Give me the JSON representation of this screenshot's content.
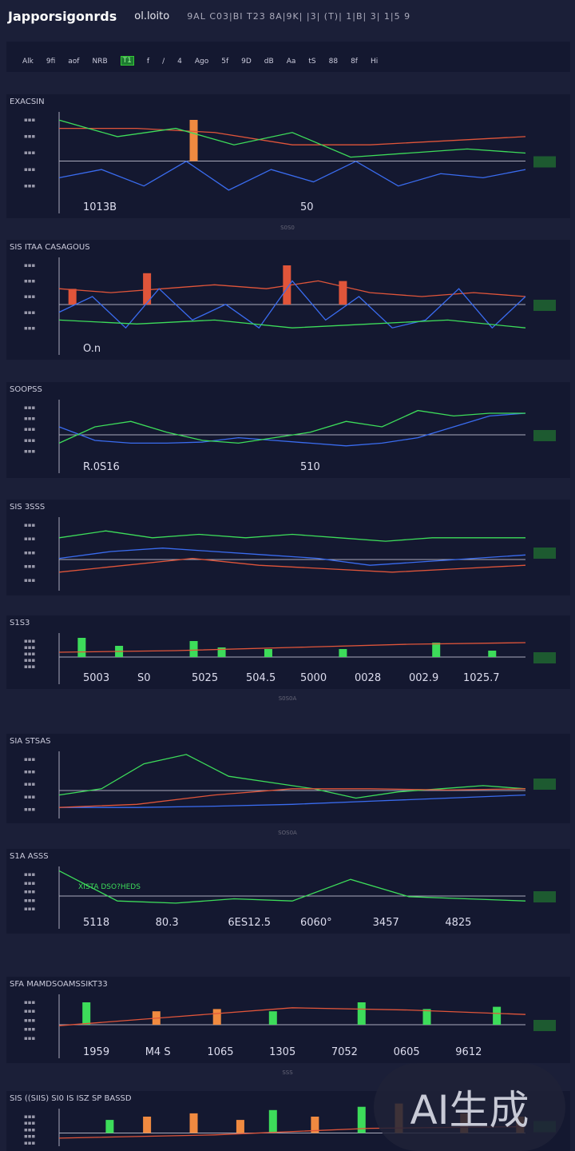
{
  "header": {
    "brand": "Japporsigonrds",
    "subtitle": "ol.loito",
    "breadcrumb": "9AL C03|BI T23 8A|9K| |3| (T)| 1|B| 3| 1|5 9"
  },
  "toolbar": {
    "items": [
      "Alk",
      "9fi",
      "aof",
      "NRB",
      "T1",
      "f",
      "/",
      "4",
      "Ago",
      "5f",
      "9D",
      "dB",
      "Aa",
      "tS",
      "88",
      "8f",
      "Hi"
    ],
    "active_index": 4
  },
  "colors": {
    "background": "#1b1f38",
    "panel": "#141830",
    "green": "#3ddc5a",
    "red": "#e0553a",
    "blue": "#3a6cf0",
    "orange": "#f08a40"
  },
  "panels": [
    {
      "title": "EXACSIN",
      "labels": [
        "1013B",
        "50"
      ],
      "caption": "S0S0",
      "bars": [
        [
          28,
          0.5,
          "orange"
        ]
      ],
      "lines": [
        {
          "color": "red",
          "v": [
            0.2,
            0.2,
            0.25,
            0.4,
            0.4,
            0.35,
            0.3
          ]
        },
        {
          "color": "blue",
          "v": [
            0.8,
            0.7,
            0.9,
            0.6,
            0.95,
            0.7,
            0.85,
            0.6,
            0.9,
            0.75,
            0.8,
            0.7
          ]
        },
        {
          "color": "green",
          "v": [
            0.1,
            0.3,
            0.2,
            0.4,
            0.25,
            0.55,
            0.5,
            0.45,
            0.5
          ]
        }
      ]
    },
    {
      "title": "SIS ITAA CASAGOUS",
      "labels": [
        "O.n"
      ],
      "caption": "",
      "bars": [
        [
          2,
          0.2,
          "red"
        ],
        [
          18,
          0.4,
          "red"
        ],
        [
          48,
          0.5,
          "red"
        ],
        [
          60,
          0.3,
          "red"
        ]
      ],
      "lines": [
        {
          "color": "red",
          "v": [
            0.4,
            0.45,
            0.4,
            0.35,
            0.4,
            0.3,
            0.45,
            0.5,
            0.45,
            0.5
          ]
        },
        {
          "color": "blue",
          "v": [
            0.7,
            0.5,
            0.9,
            0.4,
            0.8,
            0.6,
            0.9,
            0.3,
            0.8,
            0.5,
            0.9,
            0.8,
            0.4,
            0.9,
            0.5
          ]
        },
        {
          "color": "green",
          "v": [
            0.8,
            0.85,
            0.8,
            0.9,
            0.85,
            0.8,
            0.9
          ]
        }
      ]
    },
    {
      "title": "SOOPSS",
      "labels": [
        "R.0S16",
        "510"
      ],
      "caption": "",
      "bars": [],
      "lines": [
        {
          "color": "blue",
          "v": [
            0.5,
            0.75,
            0.8,
            0.8,
            0.78,
            0.7,
            0.75,
            0.8,
            0.85,
            0.8,
            0.7,
            0.5,
            0.3,
            0.25
          ]
        },
        {
          "color": "green",
          "v": [
            0.8,
            0.5,
            0.4,
            0.6,
            0.75,
            0.8,
            0.7,
            0.6,
            0.4,
            0.5,
            0.2,
            0.3,
            0.25,
            0.25
          ]
        }
      ]
    },
    {
      "title": "SIS 3SSS",
      "labels": [],
      "caption": "",
      "bars": [],
      "lines": [
        {
          "color": "green",
          "v": [
            0.3,
            0.2,
            0.3,
            0.25,
            0.3,
            0.25,
            0.3,
            0.35,
            0.3,
            0.3,
            0.3
          ]
        },
        {
          "color": "blue",
          "v": [
            0.6,
            0.5,
            0.45,
            0.5,
            0.55,
            0.6,
            0.7,
            0.65,
            0.6,
            0.55
          ]
        },
        {
          "color": "red",
          "v": [
            0.8,
            0.7,
            0.6,
            0.7,
            0.75,
            0.8,
            0.75,
            0.7
          ]
        }
      ]
    },
    {
      "title": "S1S3",
      "labels": [
        "5003",
        "S0",
        "5025",
        "504.5",
        "5000",
        "0028",
        "002.9",
        "1025.7"
      ],
      "caption": "S0S0A",
      "bars": [
        [
          4,
          0.6,
          "green"
        ],
        [
          12,
          0.35,
          "green"
        ],
        [
          28,
          0.5,
          "green"
        ],
        [
          34,
          0.3,
          "green"
        ],
        [
          44,
          0.25,
          "green"
        ],
        [
          60,
          0.25,
          "green"
        ],
        [
          80,
          0.45,
          "green"
        ],
        [
          92,
          0.2,
          "green"
        ]
      ],
      "lines": [
        {
          "color": "red",
          "v": [
            0.6,
            0.55,
            0.45,
            0.35,
            0.3
          ]
        }
      ]
    },
    {
      "title": "SIA STSAS",
      "labels": [],
      "caption": "SOS0A",
      "bars": [],
      "lines": [
        {
          "color": "blue",
          "v": [
            0.9,
            0.9,
            0.88,
            0.85,
            0.8,
            0.75,
            0.7
          ]
        },
        {
          "color": "green",
          "v": [
            0.7,
            0.6,
            0.2,
            0.05,
            0.4,
            0.5,
            0.6,
            0.75,
            0.65,
            0.6,
            0.55,
            0.6
          ]
        },
        {
          "color": "red",
          "v": [
            0.9,
            0.85,
            0.7,
            0.6,
            0.6,
            0.62,
            0.6
          ]
        }
      ]
    },
    {
      "title": "S1A ASSS",
      "labels": [
        "5118",
        "80.3",
        "6ES12.5",
        "6060°",
        "3457",
        "4825"
      ],
      "inner": "XISTA DSO?HEDS",
      "caption": "",
      "bars": [],
      "lines": [
        {
          "color": "green",
          "v": [
            0.1,
            0.8,
            0.85,
            0.75,
            0.8,
            0.3,
            0.7,
            0.75,
            0.8
          ]
        }
      ]
    },
    {
      "title": "SFA MAMDSOAMSSIKT33",
      "labels": [
        "1959",
        "M4 S",
        "1065",
        "1305",
        "7052",
        "0605",
        "9612"
      ],
      "caption": "SSS",
      "bars": [
        [
          5,
          0.5,
          "green"
        ],
        [
          20,
          0.3,
          "orange"
        ],
        [
          33,
          0.35,
          "orange"
        ],
        [
          45,
          0.3,
          "green"
        ],
        [
          64,
          0.5,
          "green"
        ],
        [
          78,
          0.35,
          "green"
        ],
        [
          93,
          0.4,
          "green"
        ]
      ],
      "lines": [
        {
          "color": "red",
          "v": [
            0.7,
            0.5,
            0.3,
            0.35,
            0.45
          ]
        }
      ]
    },
    {
      "title": "SIS ((SIIS) SI0 IS ISZ SP BASSD",
      "labels": [],
      "caption": "",
      "bars": [
        [
          10,
          0.4,
          "green"
        ],
        [
          18,
          0.5,
          "orange"
        ],
        [
          28,
          0.6,
          "orange"
        ],
        [
          38,
          0.4,
          "orange"
        ],
        [
          45,
          0.7,
          "green"
        ],
        [
          54,
          0.5,
          "orange"
        ],
        [
          64,
          0.8,
          "green"
        ],
        [
          72,
          0.9,
          "orange"
        ],
        [
          86,
          0.6,
          "orange"
        ],
        [
          98,
          0.5,
          "orange"
        ]
      ],
      "lines": [
        {
          "color": "red",
          "v": [
            0.9,
            0.8,
            0.6,
            0.55
          ]
        }
      ]
    }
  ],
  "watermark": "AI生成"
}
